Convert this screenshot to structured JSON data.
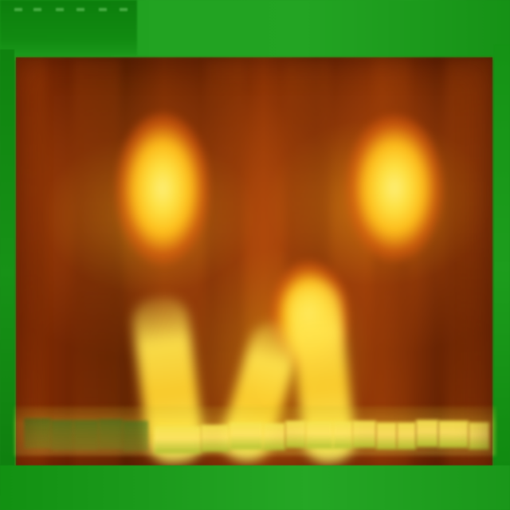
{
  "colors": {
    "frame_green": "#1f8e1f",
    "panel_dark_green": "#0f830f",
    "image_red_orange": "#7a2b04",
    "image_orange": "#d66a12",
    "glow_yellow": "#ffe241",
    "strip_yellow": "#ffe463"
  }
}
